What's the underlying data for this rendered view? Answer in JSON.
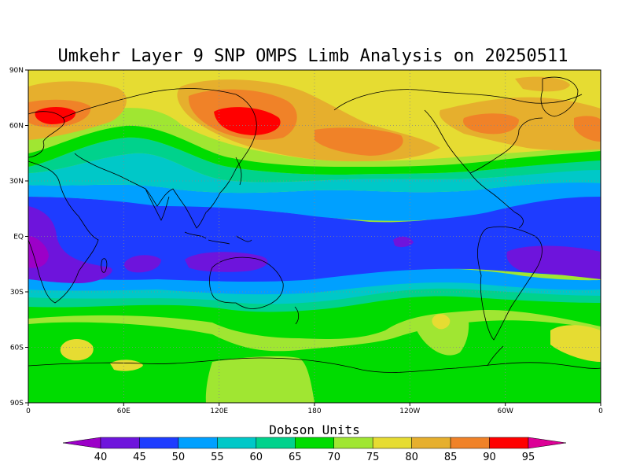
{
  "map": {
    "title": "Umkehr Layer 9 SNP OMPS Limb Analysis on 20250511",
    "projection": "equirectangular",
    "lon_range": [
      0,
      360
    ],
    "lat_range": [
      -90,
      90
    ],
    "grid": "dotted",
    "lat_ticks": [
      "90N",
      "60N",
      "30N",
      "EQ",
      "30S",
      "60S",
      "90S"
    ],
    "lon_ticks": [
      "0",
      "60E",
      "120E",
      "180",
      "120W",
      "60W",
      "0"
    ]
  },
  "colorbar": {
    "title": "Dobson Units",
    "levels": [
      "40",
      "45",
      "50",
      "55",
      "60",
      "65",
      "70",
      "75",
      "80",
      "85",
      "90",
      "95"
    ],
    "colors": [
      "#9c00c8",
      "#6e14dc",
      "#1e3cff",
      "#00a0ff",
      "#00c8c8",
      "#00d28c",
      "#00dc00",
      "#a0e632",
      "#e6dc32",
      "#e6af2d",
      "#f08228",
      "#ff0000",
      "#dc0096"
    ]
  }
}
